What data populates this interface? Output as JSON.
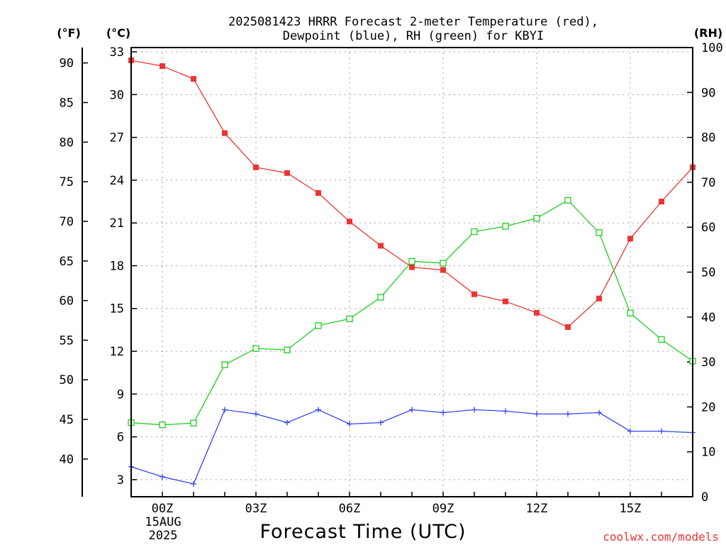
{
  "chart_data": {
    "type": "line",
    "title_lines": [
      "2025081423 HRRR Forecast 2-meter Temperature (red),",
      "Dewpoint (blue), RH (green) for KBYI"
    ],
    "xlabel": "Forecast Time (UTC)",
    "date_label": [
      "15AUG",
      "2025"
    ],
    "credit": "coolwx.com/models",
    "units": {
      "fahrenheit": "(°F)",
      "celsius": "(°C)",
      "rh": "(RH)"
    },
    "x": [
      "23Z",
      "00Z",
      "01Z",
      "02Z",
      "03Z",
      "04Z",
      "05Z",
      "06Z",
      "07Z",
      "08Z",
      "09Z",
      "10Z",
      "11Z",
      "12Z",
      "13Z",
      "14Z",
      "15Z",
      "16Z",
      "17Z"
    ],
    "x_tick_labels": [
      "00Z",
      "03Z",
      "06Z",
      "09Z",
      "12Z",
      "15Z"
    ],
    "y_celsius_ticks": [
      "3",
      "6",
      "9",
      "12",
      "15",
      "18",
      "21",
      "24",
      "27",
      "30",
      "33"
    ],
    "y_fahrenheit_ticks": [
      "40",
      "45",
      "50",
      "55",
      "60",
      "65",
      "70",
      "75",
      "80",
      "85",
      "90"
    ],
    "y_rh_ticks": [
      "0",
      "10",
      "20",
      "30",
      "40",
      "50",
      "60",
      "70",
      "80",
      "90",
      "100"
    ],
    "ylim_celsius": [
      1.8,
      33.3
    ],
    "ylim_rh": [
      0,
      100
    ],
    "grid": true,
    "series": [
      {
        "name": "Temperature (red)",
        "axis": "celsius",
        "color": "#ee3333",
        "marker": "filled-square",
        "values": [
          32.4,
          32.0,
          31.1,
          27.3,
          24.9,
          24.5,
          23.1,
          21.1,
          19.4,
          17.9,
          17.7,
          16.0,
          15.5,
          14.7,
          13.7,
          15.7,
          19.9,
          22.5,
          24.9
        ]
      },
      {
        "name": "Dewpoint (blue)",
        "axis": "celsius",
        "color": "#3344ee",
        "marker": "plus",
        "values": [
          3.9,
          3.2,
          2.7,
          7.9,
          7.6,
          7.0,
          7.9,
          6.9,
          7.0,
          7.9,
          7.7,
          7.9,
          7.8,
          7.6,
          7.6,
          7.7,
          6.4,
          6.4,
          6.3
        ]
      },
      {
        "name": "RH (green)",
        "axis": "rh",
        "color": "#22cc22",
        "marker": "open-square",
        "values": [
          16.5,
          16.0,
          16.4,
          29.4,
          33.0,
          32.7,
          38.1,
          39.6,
          44.4,
          52.4,
          52.0,
          59.0,
          60.2,
          62.0,
          66.0,
          58.8,
          40.9,
          35.0,
          30.2
        ]
      }
    ]
  }
}
